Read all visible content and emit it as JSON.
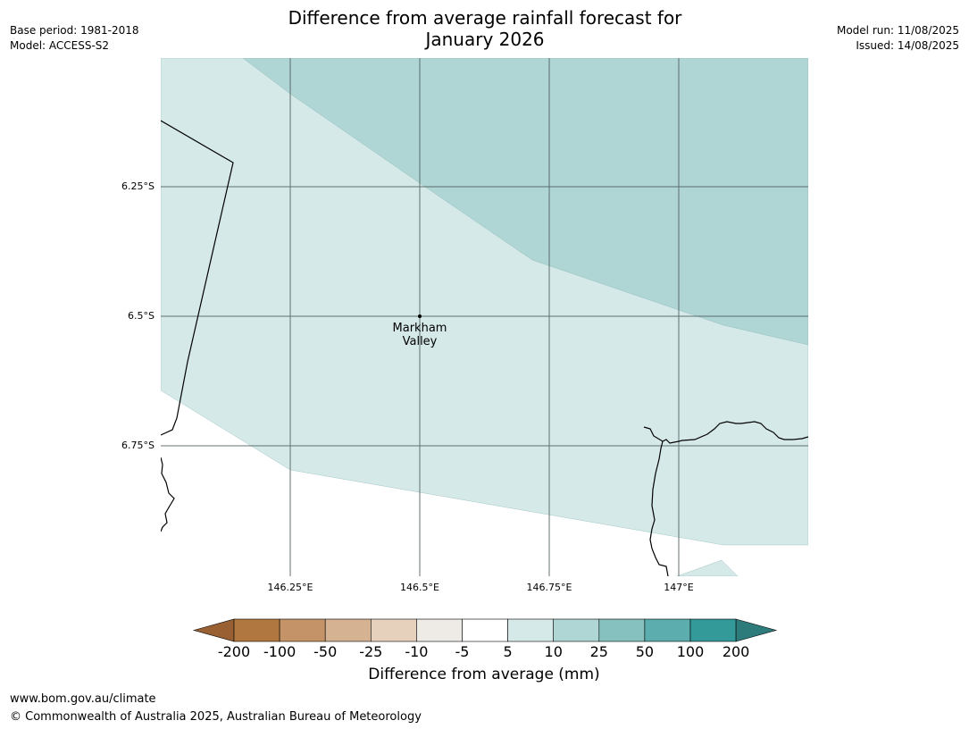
{
  "title_line1": "Difference from average rainfall forecast for",
  "title_line2": "January 2026",
  "header_left": {
    "base_period": "Base period: 1981-2018",
    "model": "Model: ACCESS-S2"
  },
  "header_right": {
    "model_run": "Model run: 11/08/2025",
    "issued": "Issued: 14/08/2025"
  },
  "lat_labels": [
    "6.25°S",
    "6.5°S",
    "6.75°S"
  ],
  "lon_labels": [
    "146.25°E",
    "146.5°E",
    "146.75°E",
    "147°E"
  ],
  "town": {
    "name_line1": "Markham",
    "name_line2": "Valley"
  },
  "colorbar": {
    "ticks": [
      "-200",
      "-100",
      "-50",
      "-25",
      "-10",
      "-5",
      "5",
      "10",
      "25",
      "50",
      "100",
      "200"
    ],
    "colors": [
      "#996033",
      "#b07840",
      "#c49468",
      "#d5b291",
      "#e6d1bd",
      "#eeeae6",
      "#ffffff",
      "#d5e9e8",
      "#afd5d5",
      "#86c1c0",
      "#5cadad",
      "#339999",
      "#2e7b7b"
    ],
    "title": "Difference from average (mm)"
  },
  "map_colors": {
    "band_5_10": "#d5e9e8",
    "band_10_25": "#afd5d5"
  },
  "footer": {
    "url": "www.bom.gov.au/climate",
    "copyright": "© Commonwealth of Australia 2025, Australian Bureau of Meteorology"
  }
}
